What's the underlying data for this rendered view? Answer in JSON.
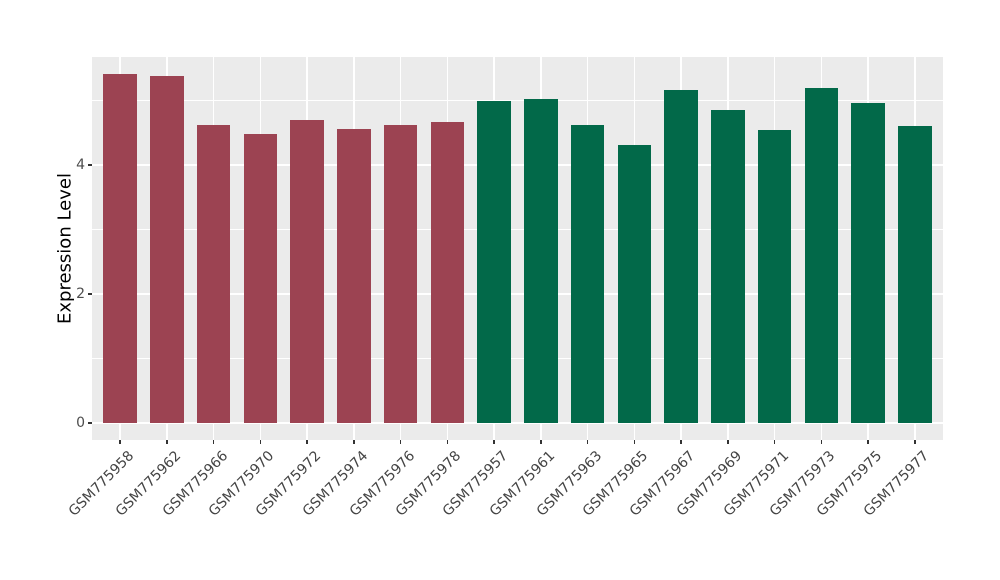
{
  "chart_data": {
    "type": "bar",
    "title": "",
    "xlabel": "",
    "ylabel": "Expression Level",
    "yticks": [
      0,
      2,
      4
    ],
    "minor_yticks": [
      1,
      3,
      5
    ],
    "ylim": [
      -0.27,
      5.68
    ],
    "grid": "on",
    "legend": "none",
    "panel_bg": "#EBEBEB",
    "grid_color": "#FFFFFF",
    "group_colors": {
      "group1": "#9C4352",
      "group2": "#026949"
    },
    "bars": [
      {
        "label": "GSM775958",
        "value": 5.41,
        "group": "group1"
      },
      {
        "label": "GSM775962",
        "value": 5.38,
        "group": "group1"
      },
      {
        "label": "GSM775966",
        "value": 4.62,
        "group": "group1"
      },
      {
        "label": "GSM775970",
        "value": 4.48,
        "group": "group1"
      },
      {
        "label": "GSM775972",
        "value": 4.7,
        "group": "group1"
      },
      {
        "label": "GSM775974",
        "value": 4.56,
        "group": "group1"
      },
      {
        "label": "GSM775976",
        "value": 4.62,
        "group": "group1"
      },
      {
        "label": "GSM775978",
        "value": 4.67,
        "group": "group1"
      },
      {
        "label": "GSM775957",
        "value": 5.0,
        "group": "group2"
      },
      {
        "label": "GSM775961",
        "value": 5.03,
        "group": "group2"
      },
      {
        "label": "GSM775963",
        "value": 4.62,
        "group": "group2"
      },
      {
        "label": "GSM775965",
        "value": 4.31,
        "group": "group2"
      },
      {
        "label": "GSM775967",
        "value": 5.16,
        "group": "group2"
      },
      {
        "label": "GSM775969",
        "value": 4.86,
        "group": "group2"
      },
      {
        "label": "GSM775971",
        "value": 4.54,
        "group": "group2"
      },
      {
        "label": "GSM775973",
        "value": 5.19,
        "group": "group2"
      },
      {
        "label": "GSM775975",
        "value": 4.96,
        "group": "group2"
      },
      {
        "label": "GSM775977",
        "value": 4.6,
        "group": "group2"
      }
    ]
  }
}
